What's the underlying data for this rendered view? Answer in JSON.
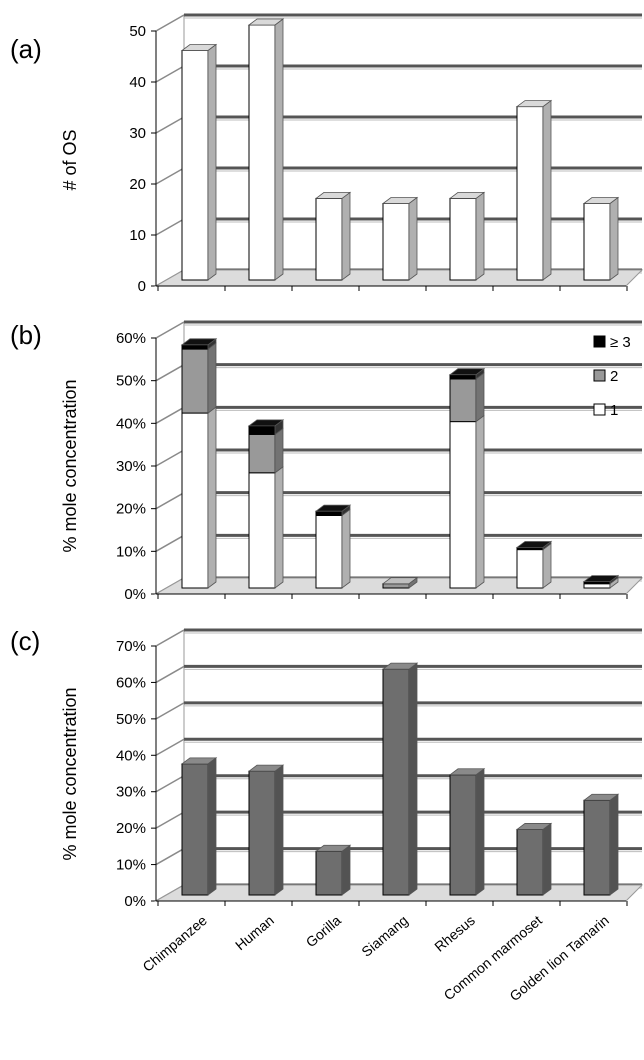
{
  "chart_data": [
    {
      "panel_label": "(a)",
      "type": "bar",
      "ylabel": "# of OS",
      "ylim": [
        0,
        50
      ],
      "yticks": [
        "0",
        "10",
        "20",
        "30",
        "40",
        "50"
      ],
      "grid": true,
      "categories": [
        "Chimpanzee",
        "Human",
        "Gorilla",
        "Siamang",
        "Rhesus",
        "Common marmoset",
        "Golden lion Tamarin"
      ],
      "values": [
        45,
        50,
        16,
        15,
        16,
        34,
        15
      ],
      "colors": {
        "bar": "#ffffff"
      }
    },
    {
      "panel_label": "(b)",
      "type": "bar",
      "stacked": true,
      "ylabel": "% mole concentration",
      "ylim": [
        0,
        60
      ],
      "yticks": [
        "0%",
        "10%",
        "20%",
        "30%",
        "40%",
        "50%",
        "60%"
      ],
      "grid": true,
      "legend_position": "top-right",
      "categories": [
        "Chimpanzee",
        "Human",
        "Gorilla",
        "Siamang",
        "Rhesus",
        "Common marmoset",
        "Golden lion Tamarin"
      ],
      "series": [
        {
          "name": "1",
          "color": "#ffffff",
          "values": [
            41,
            27,
            17,
            0,
            39,
            9,
            1
          ]
        },
        {
          "name": "2",
          "color": "#999999",
          "values": [
            15,
            9,
            0,
            1,
            10,
            0,
            0
          ]
        },
        {
          "name": "≥ 3",
          "color": "#000000",
          "values": [
            1,
            2,
            1,
            0,
            1,
            0.5,
            0.5
          ]
        }
      ]
    },
    {
      "panel_label": "(c)",
      "type": "bar",
      "ylabel": "% mole concentration",
      "ylim": [
        0,
        70
      ],
      "yticks": [
        "0%",
        "10%",
        "20%",
        "30%",
        "40%",
        "50%",
        "60%",
        "70%"
      ],
      "grid": true,
      "categories": [
        "Chimpanzee",
        "Human",
        "Gorilla",
        "Siamang",
        "Rhesus",
        "Common marmoset",
        "Golden lion Tamarin"
      ],
      "values": [
        36,
        34,
        12,
        62,
        33,
        18,
        26
      ],
      "colors": {
        "bar": "#6e6e6e"
      }
    }
  ]
}
